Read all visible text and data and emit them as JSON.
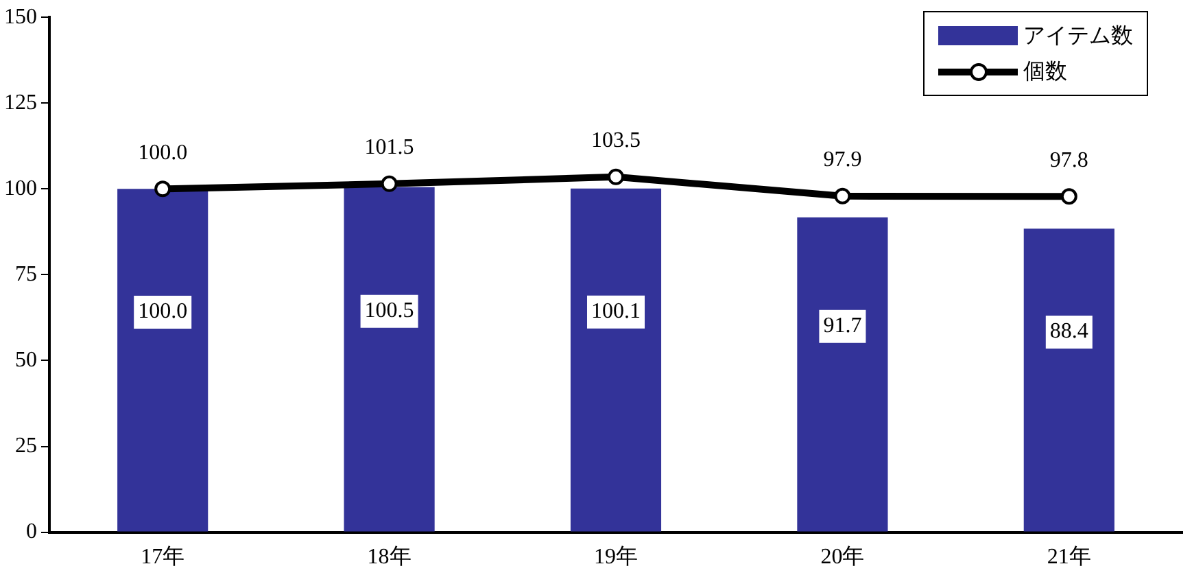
{
  "chart_data": {
    "type": "bar",
    "categories": [
      "17年",
      "18年",
      "19年",
      "20年",
      "21年"
    ],
    "series": [
      {
        "name": "アイテム数",
        "color": "#333399",
        "values": [
          100.0,
          100.5,
          100.1,
          91.7,
          88.4
        ],
        "value_labels": [
          "100.0",
          "100.5",
          "100.1",
          "91.7",
          "88.4"
        ]
      },
      {
        "name": "個数",
        "type": "line",
        "color": "#000000",
        "values": [
          100.0,
          101.5,
          103.5,
          97.9,
          97.8
        ],
        "value_labels": [
          "100.0",
          "101.5",
          "103.5",
          "97.9",
          "97.8"
        ]
      }
    ],
    "ylim": [
      0,
      150
    ],
    "yticks": [
      0,
      25,
      50,
      75,
      100,
      125,
      150
    ],
    "grid": false,
    "legend": "top right",
    "marker": "circle"
  }
}
